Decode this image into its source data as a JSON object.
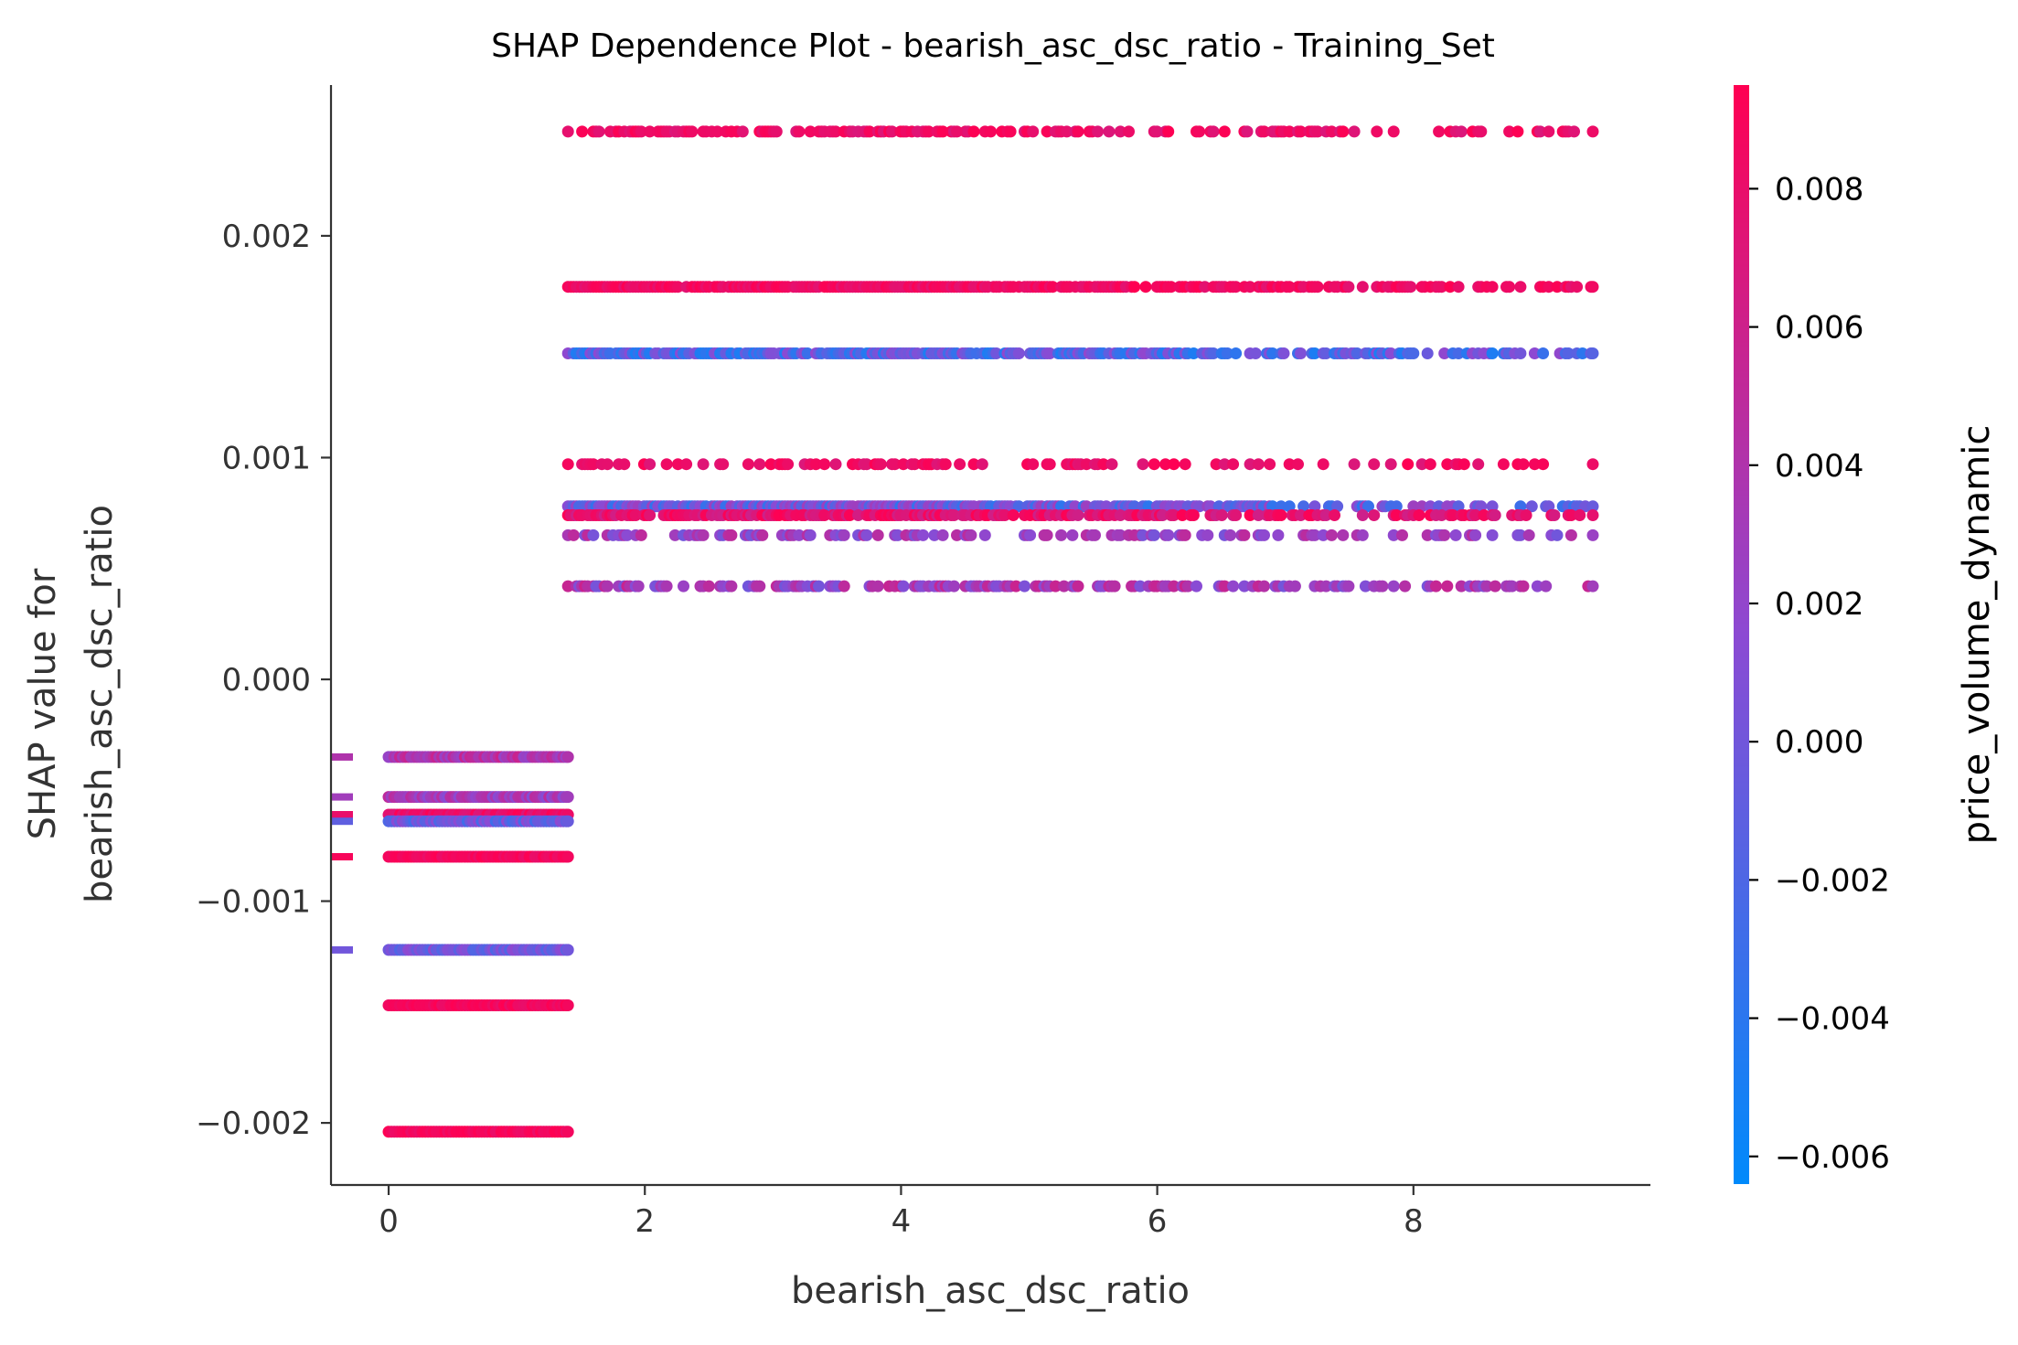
{
  "chart_data": {
    "type": "scatter",
    "title": "SHAP Dependence Plot - bearish_asc_dsc_ratio - Training_Set",
    "xlabel": "bearish_asc_dsc_ratio",
    "ylabel_lines": [
      "SHAP value for",
      "bearish_asc_dsc_ratio"
    ],
    "xlim": [
      -0.45,
      9.85
    ],
    "ylim": [
      -0.00228,
      0.00268
    ],
    "x_ticks": [
      0,
      2,
      4,
      6,
      8
    ],
    "x_tick_labels": [
      "0",
      "2",
      "4",
      "6",
      "8"
    ],
    "y_ticks": [
      -0.002,
      -0.001,
      0.0,
      0.001,
      0.002
    ],
    "y_tick_labels": [
      "−0.002",
      "−0.001",
      "0.000",
      "0.001",
      "0.002"
    ],
    "colorbar": {
      "label": "price_volume_dynamic",
      "range": [
        -0.0064,
        0.0095
      ],
      "colors": [
        "#008afb",
        "#ff0052"
      ],
      "ticks": [
        -0.006,
        -0.004,
        -0.002,
        0.0,
        0.002,
        0.004,
        0.006,
        0.008
      ],
      "tick_labels": [
        "−0.006",
        "−0.004",
        "−0.002",
        "0.000",
        "0.002",
        "0.004",
        "0.006",
        "0.008"
      ]
    },
    "series": [
      {
        "y": 0.00247,
        "x_range": [
          1.4,
          9.4
        ],
        "density": 0.55,
        "color_range": [
          0.007,
          0.0095
        ]
      },
      {
        "y": 0.00177,
        "x_range": [
          1.4,
          9.4
        ],
        "density": 0.95,
        "color_range": [
          0.0075,
          0.0095
        ]
      },
      {
        "y": 0.00147,
        "x_range": [
          1.4,
          9.4
        ],
        "density": 0.9,
        "color_range": [
          -0.005,
          0.002
        ]
      },
      {
        "y": 0.00097,
        "x_range": [
          1.4,
          9.4
        ],
        "density": 0.35,
        "color_range": [
          0.007,
          0.0095
        ]
      },
      {
        "y": 0.00078,
        "x_range": [
          1.4,
          9.4
        ],
        "density": 0.95,
        "color_range": [
          -0.004,
          0.003
        ]
      },
      {
        "y": 0.00074,
        "x_range": [
          1.4,
          9.4
        ],
        "density": 0.7,
        "color_range": [
          0.006,
          0.0095
        ]
      },
      {
        "y": 0.00065,
        "x_range": [
          1.4,
          9.4
        ],
        "density": 0.4,
        "color_range": [
          0.0,
          0.005
        ]
      },
      {
        "y": 0.00042,
        "x_range": [
          1.4,
          9.4
        ],
        "density": 0.55,
        "color_range": [
          0.0,
          0.006
        ]
      },
      {
        "y": -0.00035,
        "x_range": [
          0.0,
          1.4
        ],
        "density": 1.0,
        "color_range": [
          0.002,
          0.006
        ]
      },
      {
        "y": -0.00053,
        "x_range": [
          0.0,
          1.4
        ],
        "density": 1.0,
        "color_range": [
          0.001,
          0.005
        ]
      },
      {
        "y": -0.00061,
        "x_range": [
          0.0,
          1.4
        ],
        "density": 1.0,
        "color_range": [
          0.007,
          0.0095
        ]
      },
      {
        "y": -0.00064,
        "x_range": [
          0.0,
          1.4
        ],
        "density": 1.0,
        "color_range": [
          -0.003,
          0.002
        ]
      },
      {
        "y": -0.0008,
        "x_range": [
          0.0,
          1.4
        ],
        "density": 1.0,
        "color_range": [
          0.008,
          0.0095
        ]
      },
      {
        "y": -0.00122,
        "x_range": [
          0.0,
          1.4
        ],
        "density": 1.0,
        "color_range": [
          -0.002,
          0.002
        ]
      },
      {
        "y": -0.00147,
        "x_range": [
          0.0,
          1.4
        ],
        "density": 1.0,
        "color_range": [
          0.008,
          0.0095
        ]
      },
      {
        "y": -0.00204,
        "x_range": [
          0.0,
          1.4
        ],
        "density": 1.0,
        "color_range": [
          0.008,
          0.0095
        ]
      }
    ],
    "margin_markers": [
      {
        "y": -0.00035,
        "value": 0.004
      },
      {
        "y": -0.00053,
        "value": 0.003
      },
      {
        "y": -0.00061,
        "value": 0.008
      },
      {
        "y": -0.00064,
        "value": -0.001
      },
      {
        "y": -0.0008,
        "value": 0.009
      },
      {
        "y": -0.00122,
        "value": 0.0
      }
    ]
  }
}
